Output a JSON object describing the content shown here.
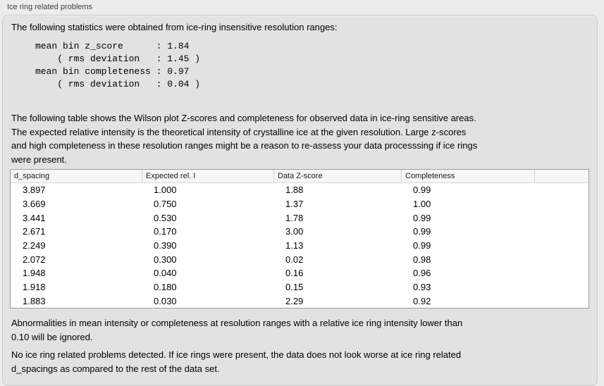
{
  "panel": {
    "title": "Ice ring related problems"
  },
  "intro_text": "The following statistics were obtained from ice-ring insensitive resolution ranges:",
  "stats_block": "mean bin z_score      : 1.84\n    ( rms deviation   : 1.45 )\nmean bin completeness : 0.97\n    ( rms deviation   : 0.04 )",
  "table_intro": "The following table shows the Wilson plot Z-scores and completeness for observed data in ice-ring sensitive areas.\nThe expected relative intensity is the theoretical intensity of crystalline ice at the given resolution. Large z-scores\nand high completeness in these resolution ranges might be a reason to re-assess your data processsing if ice rings\nwere present.",
  "table": {
    "columns": [
      "d_spacing",
      "Expected rel. I",
      "Data Z-score",
      "Completeness",
      ""
    ],
    "rows": [
      [
        "3.897",
        "1.000",
        "1.88",
        "0.99"
      ],
      [
        "3.669",
        "0.750",
        "1.37",
        "1.00"
      ],
      [
        "3.441",
        "0.530",
        "1.78",
        "0.99"
      ],
      [
        "2.671",
        "0.170",
        "3.00",
        "0.99"
      ],
      [
        "2.249",
        "0.390",
        "1.13",
        "0.99"
      ],
      [
        "2.072",
        "0.300",
        "0.02",
        "0.98"
      ],
      [
        "1.948",
        "0.040",
        "0.16",
        "0.96"
      ],
      [
        "1.918",
        "0.180",
        "0.15",
        "0.93"
      ],
      [
        "1.883",
        "0.030",
        "2.29",
        "0.92"
      ]
    ]
  },
  "ignore_note": "Abnormalities in mean intensity or completeness at resolution ranges with a relative ice ring intensity lower than\n0.10 will be ignored.",
  "conclusion_note": "No ice ring related problems detected. If ice rings were present, the data does not look worse at ice ring related\nd_spacings as compared to the rest of the data set.",
  "colors": {
    "page_background": "#ececec",
    "group_box_background": "#e2e2e2",
    "table_border": "#9c9c9c",
    "table_header_background": "#f6f6f6"
  }
}
